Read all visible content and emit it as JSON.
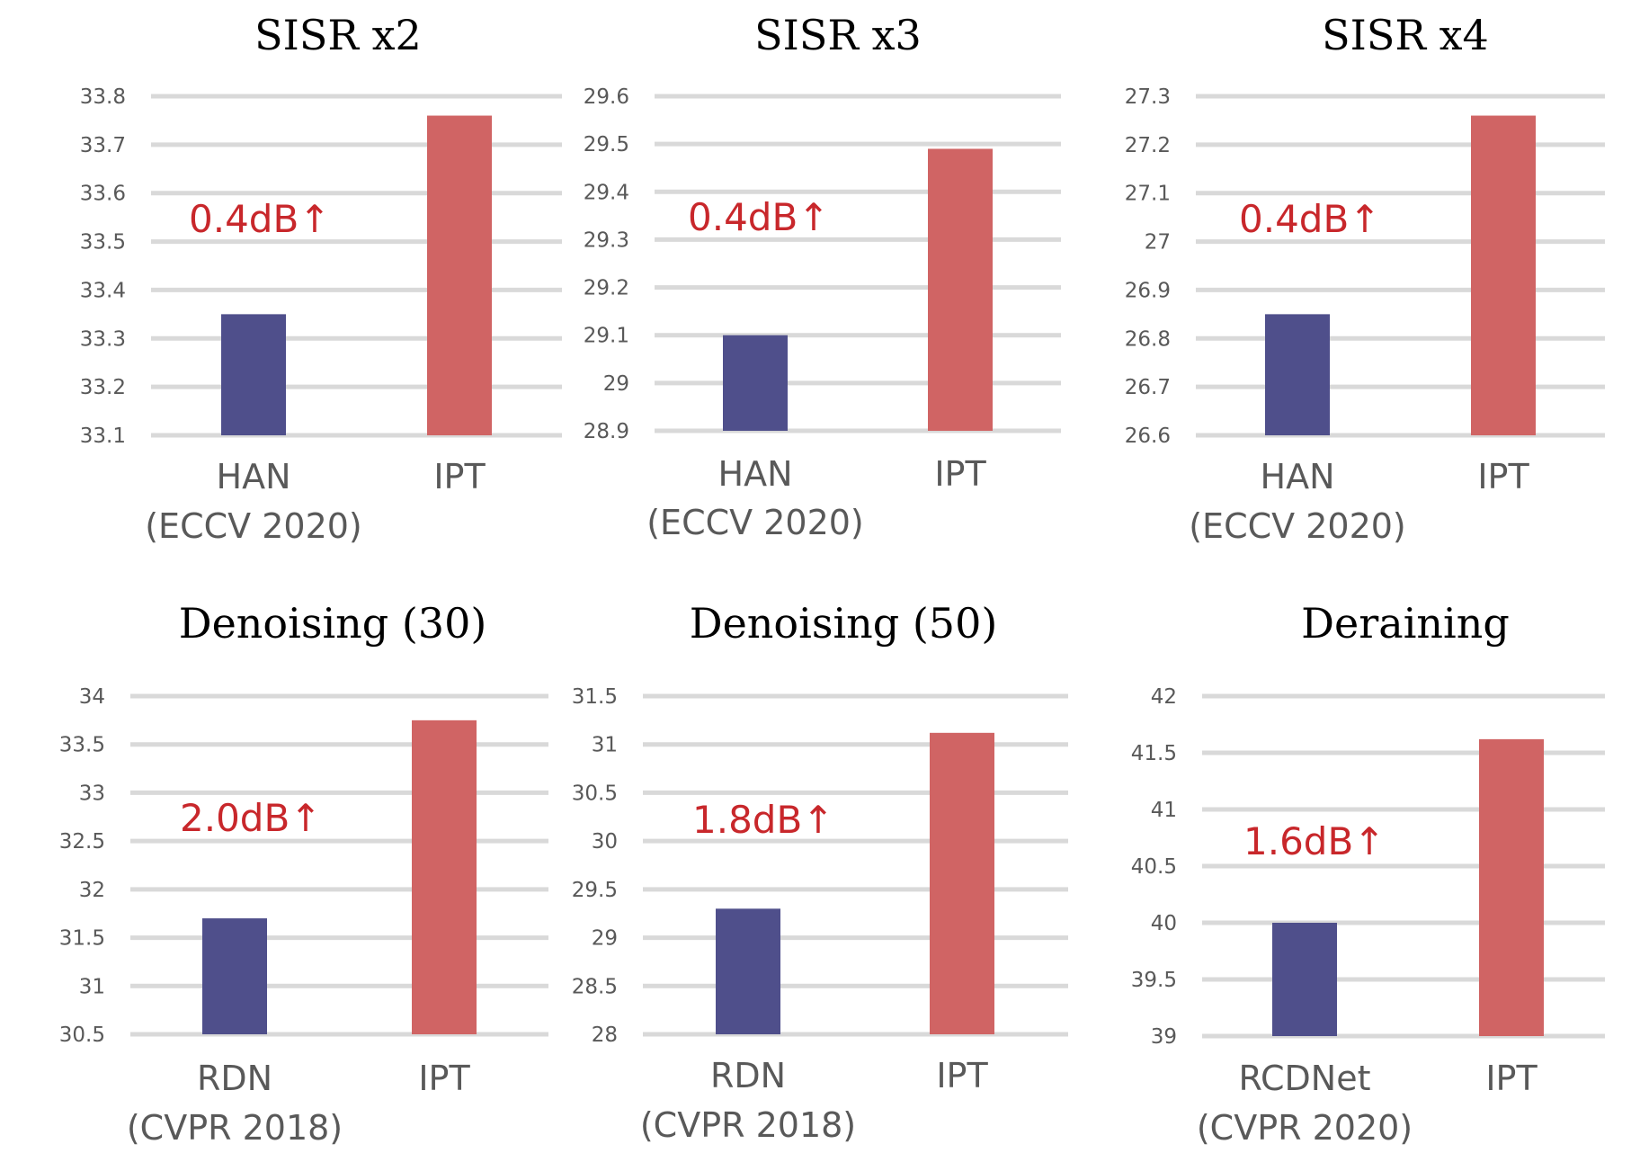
{
  "colors": {
    "baseline": "#4f4f8b",
    "ipt": "#d06464",
    "annotation": "#c8272b",
    "grid": "#d9d9d9",
    "tick": "#595959"
  },
  "chart_data": [
    {
      "type": "bar",
      "title": "SISR x2",
      "categories": [
        "HAN",
        "IPT"
      ],
      "category_sublabels": [
        "(ECCV 2020)",
        ""
      ],
      "values": [
        33.35,
        33.76
      ],
      "ylim": [
        33.1,
        33.8
      ],
      "yticks": [
        "33.1",
        "33.2",
        "33.3",
        "33.4",
        "33.5",
        "33.6",
        "33.7",
        "33.8"
      ],
      "annotation": "0.4dB↑",
      "grid": true
    },
    {
      "type": "bar",
      "title": "SISR x3",
      "categories": [
        "HAN",
        "IPT"
      ],
      "category_sublabels": [
        "(ECCV 2020)",
        ""
      ],
      "values": [
        29.1,
        29.49
      ],
      "ylim": [
        28.9,
        29.6
      ],
      "yticks": [
        "28.9",
        "29",
        "29.1",
        "29.2",
        "29.3",
        "29.4",
        "29.5",
        "29.6"
      ],
      "annotation": "0.4dB↑",
      "grid": true
    },
    {
      "type": "bar",
      "title": "SISR x4",
      "categories": [
        "HAN",
        "IPT"
      ],
      "category_sublabels": [
        "(ECCV 2020)",
        ""
      ],
      "values": [
        26.85,
        27.26
      ],
      "ylim": [
        26.6,
        27.3
      ],
      "yticks": [
        "26.6",
        "26.7",
        "26.8",
        "26.9",
        "27",
        "27.1",
        "27.2",
        "27.3"
      ],
      "annotation": "0.4dB↑",
      "grid": true
    },
    {
      "type": "bar",
      "title": "Denoising (30)",
      "categories": [
        "RDN",
        "IPT"
      ],
      "category_sublabels": [
        "(CVPR 2018)",
        ""
      ],
      "values": [
        31.7,
        33.75
      ],
      "ylim": [
        30.5,
        34
      ],
      "yticks": [
        "30.5",
        "31",
        "31.5",
        "32",
        "32.5",
        "33",
        "33.5",
        "34"
      ],
      "annotation": "2.0dB↑",
      "grid": true
    },
    {
      "type": "bar",
      "title": "Denoising (50)",
      "categories": [
        "RDN",
        "IPT"
      ],
      "category_sublabels": [
        "(CVPR 2018)",
        ""
      ],
      "values": [
        29.3,
        31.12
      ],
      "ylim": [
        28,
        31.5
      ],
      "yticks": [
        "28",
        "28.5",
        "29",
        "29.5",
        "30",
        "30.5",
        "31",
        "31.5"
      ],
      "annotation": "1.8dB↑",
      "grid": true
    },
    {
      "type": "bar",
      "title": "Deraining",
      "categories": [
        "RCDNet",
        "IPT"
      ],
      "category_sublabels": [
        "(CVPR 2020)",
        ""
      ],
      "values": [
        40.0,
        41.62
      ],
      "ylim": [
        39,
        42
      ],
      "yticks": [
        "39",
        "39.5",
        "40",
        "40.5",
        "41",
        "41.5",
        "42"
      ],
      "annotation": "1.6dB↑",
      "grid": true
    }
  ]
}
